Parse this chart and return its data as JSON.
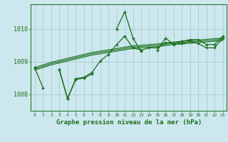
{
  "x": [
    0,
    1,
    2,
    3,
    4,
    5,
    6,
    7,
    8,
    9,
    10,
    11,
    12,
    13,
    14,
    15,
    16,
    17,
    18,
    19,
    20,
    21,
    22,
    23
  ],
  "series1": [
    1008.8,
    1008.2,
    null,
    1008.75,
    1007.87,
    1008.45,
    1008.5,
    1008.62,
    null,
    null,
    1010.0,
    1010.52,
    1009.72,
    1009.32,
    null,
    1009.35,
    1009.72,
    1009.52,
    1009.55,
    1009.62,
    1009.55,
    1009.42,
    1009.42,
    1009.72
  ],
  "series2": [
    1008.82,
    null,
    null,
    1008.75,
    1007.87,
    1008.48,
    1008.52,
    1008.67,
    1009.02,
    1009.22,
    1009.52,
    1009.78,
    1009.42,
    1009.35,
    1009.42,
    1009.42,
    1009.57,
    1009.55,
    1009.62,
    1009.67,
    1009.67,
    1009.52,
    1009.52,
    1009.78
  ],
  "trend1": [
    1008.82,
    1008.9,
    1008.98,
    1009.04,
    1009.1,
    1009.16,
    1009.22,
    1009.28,
    1009.32,
    1009.36,
    1009.4,
    1009.44,
    1009.48,
    1009.5,
    1009.52,
    1009.54,
    1009.57,
    1009.6,
    1009.62,
    1009.64,
    1009.66,
    1009.68,
    1009.7,
    1009.72
  ],
  "trend2": [
    1008.78,
    1008.86,
    1008.94,
    1009.0,
    1009.06,
    1009.12,
    1009.18,
    1009.24,
    1009.28,
    1009.32,
    1009.36,
    1009.4,
    1009.44,
    1009.46,
    1009.48,
    1009.5,
    1009.53,
    1009.56,
    1009.58,
    1009.6,
    1009.62,
    1009.64,
    1009.66,
    1009.68
  ],
  "trend3": [
    1008.74,
    1008.82,
    1008.9,
    1008.96,
    1009.02,
    1009.08,
    1009.14,
    1009.2,
    1009.24,
    1009.28,
    1009.32,
    1009.36,
    1009.4,
    1009.42,
    1009.44,
    1009.46,
    1009.49,
    1009.52,
    1009.54,
    1009.56,
    1009.58,
    1009.6,
    1009.62,
    1009.64
  ],
  "ylim": [
    1007.5,
    1010.75
  ],
  "yticks": [
    1008,
    1009,
    1010
  ],
  "xlabel": "Graphe pression niveau de la mer (hPa)",
  "bg_color": "#cce8ee",
  "line_color": "#1a6e1a",
  "grid_color": "#a0c8cc",
  "spine_color": "#2d7a2d"
}
